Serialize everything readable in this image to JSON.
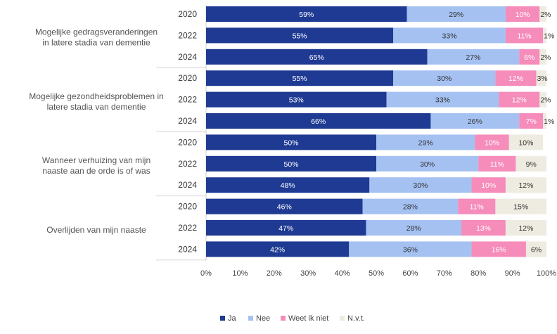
{
  "chart_data": {
    "type": "bar",
    "orientation": "horizontal",
    "stacked": true,
    "title": "",
    "xlabel": "",
    "ylabel": "",
    "xlim": [
      0,
      100
    ],
    "x_ticks": [
      "0%",
      "10%",
      "20%",
      "30%",
      "40%",
      "50%",
      "60%",
      "70%",
      "80%",
      "90%",
      "100%"
    ],
    "legend_position": "bottom-center",
    "series_meta": [
      {
        "name": "Ja",
        "color": "#1f3a93",
        "label_color": "#ffffff"
      },
      {
        "name": "Nee",
        "color": "#a5c1f2",
        "label_color": "#333333"
      },
      {
        "name": "Weet ik niet",
        "color": "#f58cba",
        "label_color": "#ffffff"
      },
      {
        "name": "N.v.t.",
        "color": "#eeebe0",
        "label_color": "#333333"
      }
    ],
    "groups": [
      {
        "label_lines": [
          "Mogelijke gedragsveranderingen",
          "in latere stadia van dementie"
        ],
        "rows": [
          {
            "year": "2020",
            "values": [
              59,
              29,
              10,
              2
            ]
          },
          {
            "year": "2022",
            "values": [
              55,
              33,
              11,
              1
            ]
          },
          {
            "year": "2024",
            "values": [
              65,
              27,
              6,
              2
            ]
          }
        ]
      },
      {
        "label_lines": [
          "Mogelijke gezondheidsproblemen in",
          "latere stadia van dementie"
        ],
        "rows": [
          {
            "year": "2020",
            "values": [
              55,
              30,
              12,
              3
            ]
          },
          {
            "year": "2022",
            "values": [
              53,
              33,
              12,
              2
            ]
          },
          {
            "year": "2024",
            "values": [
              66,
              26,
              7,
              1
            ]
          }
        ]
      },
      {
        "label_lines": [
          "Wanneer verhuizing van mijn",
          "naaste aan de orde is of was"
        ],
        "rows": [
          {
            "year": "2020",
            "values": [
              50,
              29,
              10,
              10
            ]
          },
          {
            "year": "2022",
            "values": [
              50,
              30,
              11,
              9
            ]
          },
          {
            "year": "2024",
            "values": [
              48,
              30,
              10,
              12
            ]
          }
        ]
      },
      {
        "label_lines": [
          "Overlijden van mijn naaste"
        ],
        "rows": [
          {
            "year": "2020",
            "values": [
              46,
              28,
              11,
              15
            ]
          },
          {
            "year": "2022",
            "values": [
              47,
              28,
              13,
              12
            ]
          },
          {
            "year": "2024",
            "values": [
              42,
              36,
              16,
              6
            ]
          }
        ]
      }
    ]
  }
}
